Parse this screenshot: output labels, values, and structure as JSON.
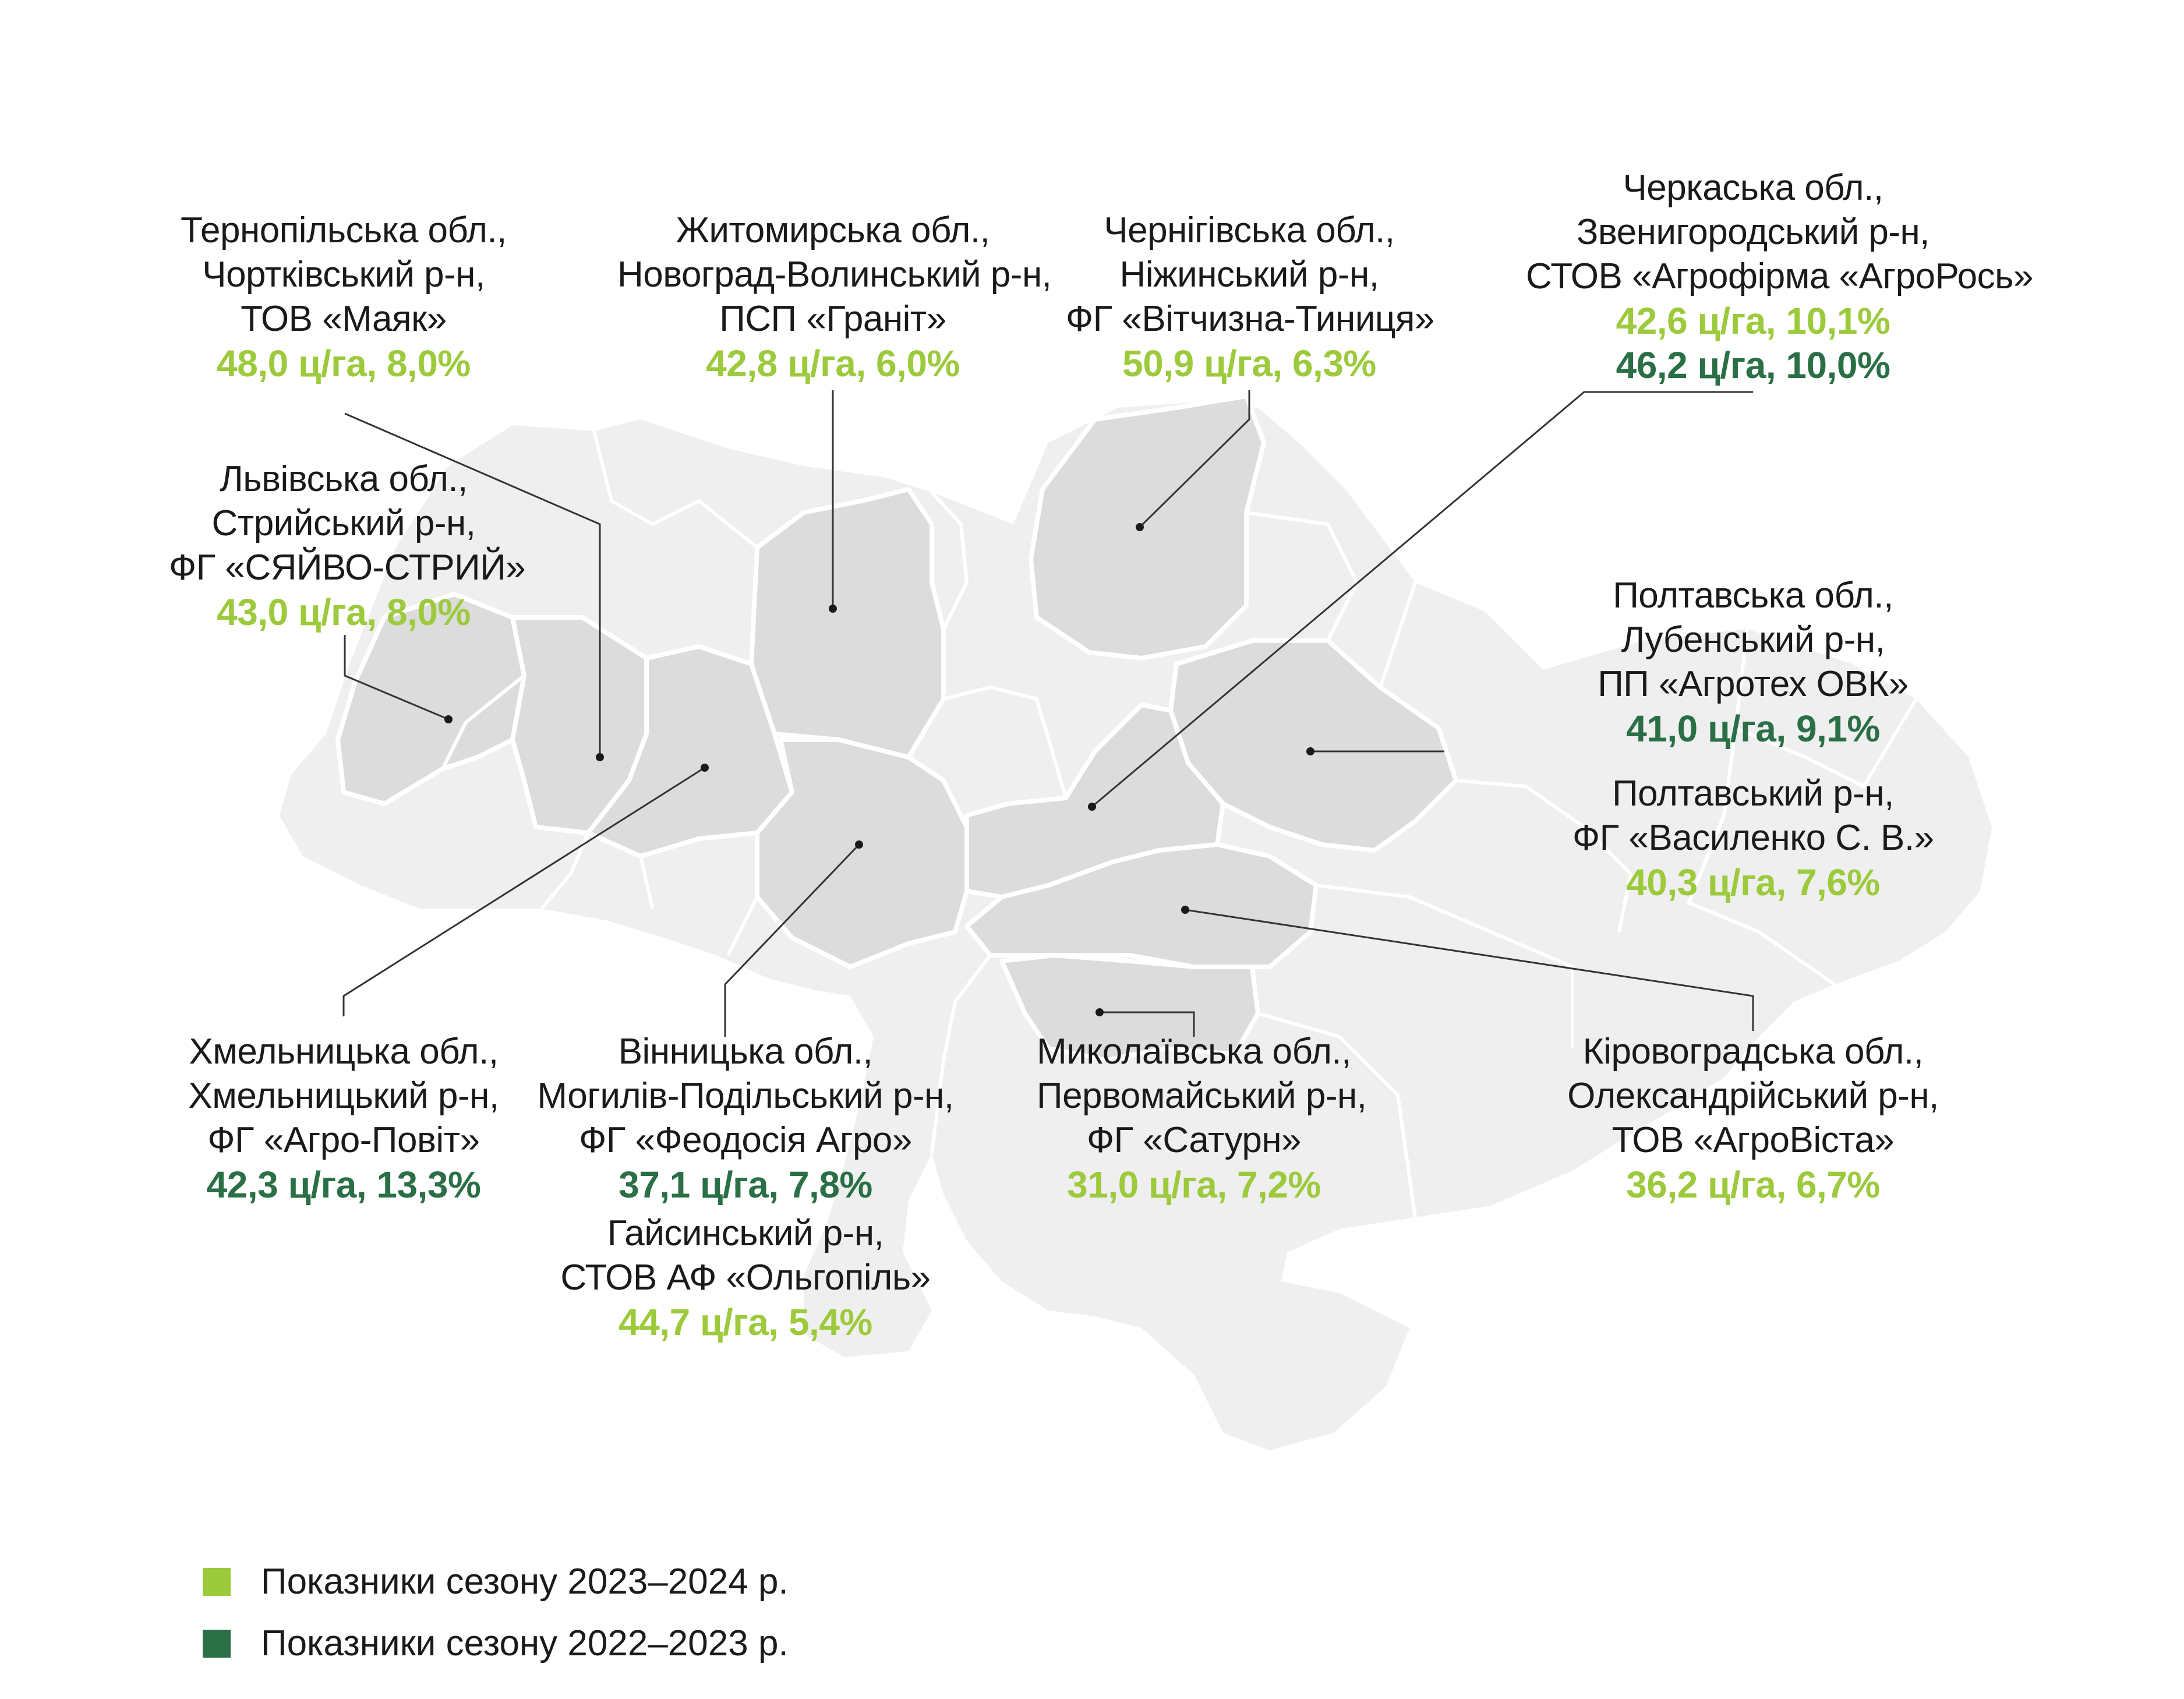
{
  "colors": {
    "season_2023_2024": "#9cca3c",
    "season_2022_2023": "#2a6f45",
    "map_base": "#efefef",
    "map_highlight": "#dcdcdd"
  },
  "callouts": {
    "ternopil": {
      "lines": [
        "Тернопільська обл.,",
        "Чортківський р-н,",
        "ТОВ «Маяк»"
      ],
      "values": [
        {
          "text": "48,0 ц/га, 8,0%",
          "season": "2023-2024"
        }
      ]
    },
    "zhytomyr": {
      "lines": [
        "Житомирська обл.,",
        "Новоград-Волинський р-н,",
        "ПСП «Граніт»"
      ],
      "values": [
        {
          "text": "42,8 ц/га, 6,0%",
          "season": "2023-2024"
        }
      ]
    },
    "chernihiv": {
      "lines": [
        "Чернігівська обл.,",
        "Ніжинський р-н,",
        "ФГ «Вітчизна-Тиниця»"
      ],
      "values": [
        {
          "text": "50,9 ц/га, 6,3%",
          "season": "2023-2024"
        }
      ]
    },
    "cherkasy": {
      "lines": [
        "Черкаська обл.,",
        "Звенигородський р-н,",
        "СТОВ «Агрофірма «АгроРось»"
      ],
      "values": [
        {
          "text": "42,6 ц/га, 10,1%",
          "season": "2023-2024"
        },
        {
          "text": "46,2 ц/га, 10,0%",
          "season": "2022-2023"
        }
      ]
    },
    "lviv": {
      "lines": [
        "Львівська обл.,",
        "Стрийський р-н,",
        "ФГ «СЯЙВО-СТРИЙ»"
      ],
      "values": [
        {
          "text": "43,0 ц/га, 8,0%",
          "season": "2023-2024"
        }
      ]
    },
    "poltava_lubny": {
      "lines": [
        "Полтавська обл.,",
        "Лубенський р-н,",
        "ПП «Агротех ОВК»"
      ],
      "values": [
        {
          "text": "41,0 ц/га, 9,1%",
          "season": "2022-2023"
        }
      ]
    },
    "poltava_poltava": {
      "lines": [
        "Полтавський р-н,",
        "ФГ «Василенко С. В.»"
      ],
      "values": [
        {
          "text": "40,3 ц/га, 7,6%",
          "season": "2023-2024"
        }
      ]
    },
    "khmelnytskyi": {
      "lines": [
        "Хмельницька обл.,",
        "Хмельницький р-н,",
        "ФГ «Агро-Повіт»"
      ],
      "values": [
        {
          "text": "42,3 ц/га, 13,3%",
          "season": "2022-2023"
        }
      ]
    },
    "vinnytsia_mohyliv": {
      "lines": [
        "Вінницька обл.,",
        "Могилів-Подільський р-н,",
        "ФГ «Феодосія Агро»"
      ],
      "values": [
        {
          "text": "37,1 ц/га, 7,8%",
          "season": "2022-2023"
        }
      ]
    },
    "vinnytsia_haisyn": {
      "lines": [
        "Гайсинський р-н,",
        "СТОВ АФ «Ольгопіль»"
      ],
      "values": [
        {
          "text": "44,7 ц/га, 5,4%",
          "season": "2023-2024"
        }
      ]
    },
    "mykolaiv": {
      "lines": [
        "Миколаївська обл.,",
        "Первомайський р-н,",
        "ФГ «Сатурн»"
      ],
      "values": [
        {
          "text": "31,0 ц/га, 7,2%",
          "season": "2023-2024"
        }
      ]
    },
    "kirovohrad": {
      "lines": [
        "Кіровоградська обл.,",
        "Олександрійський р-н,",
        "ТОВ «АгроВіста»"
      ],
      "values": [
        {
          "text": "36,2 ц/га, 6,7%",
          "season": "2023-2024"
        }
      ]
    }
  },
  "legend": [
    {
      "label": "Показники сезону 2023–2024 р.",
      "season": "2023-2024"
    },
    {
      "label": "Показники сезону 2022–2023 р.",
      "season": "2022-2023"
    }
  ]
}
